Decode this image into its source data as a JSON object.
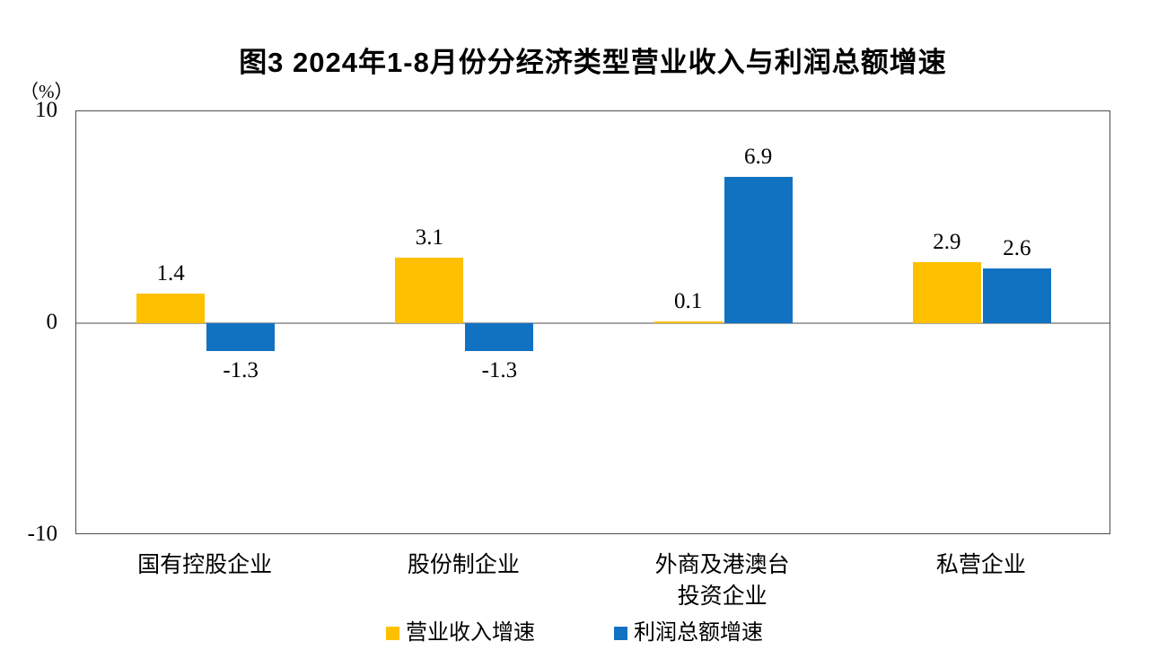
{
  "chart_data": {
    "type": "bar",
    "title": "图3 2024年1-8月份分经济类型营业收入与利润总额增速",
    "unit_label": "（%）",
    "categories": [
      {
        "lines": [
          "国有控股企业"
        ]
      },
      {
        "lines": [
          "股份制企业"
        ]
      },
      {
        "lines": [
          "外商及港澳台",
          "投资企业"
        ]
      },
      {
        "lines": [
          "私营企业"
        ]
      }
    ],
    "series": [
      {
        "key": "revenue",
        "name": "营业收入增速",
        "color": "#FFC000",
        "values": [
          1.4,
          3.1,
          0.1,
          2.9
        ],
        "labels": [
          "1.4",
          "3.1",
          "0.1",
          "2.9"
        ]
      },
      {
        "key": "profit",
        "name": "利润总额增速",
        "color": "#1272C2",
        "values": [
          -1.3,
          -1.3,
          6.9,
          2.6
        ],
        "labels": [
          "-1.3",
          "-1.3",
          "6.9",
          "2.6"
        ]
      }
    ],
    "ylim": [
      -10,
      10
    ],
    "yticks": [
      {
        "value": 10,
        "label": "10"
      },
      {
        "value": 0,
        "label": "0"
      },
      {
        "value": -10,
        "label": "-10"
      }
    ],
    "grid": "zero-line-only",
    "legend_position": "bottom"
  }
}
